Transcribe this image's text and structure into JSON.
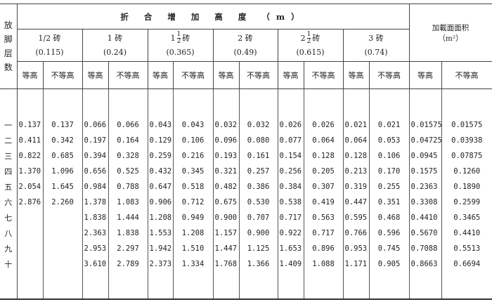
{
  "header": {
    "row_label": [
      "放",
      "脚",
      "层",
      "数"
    ],
    "group_title": "折 合 增 加 高 度 （m）",
    "area_title": "加載面面积",
    "area_unit": "（m²）",
    "sub_equal": "等高",
    "sub_unequal": "不等高",
    "groups": [
      {
        "whole": "1/2",
        "num": "",
        "den": "",
        "unit": "砖",
        "thickness": "(0.115)"
      },
      {
        "whole": "1",
        "num": "",
        "den": "",
        "unit": "砖",
        "thickness": "(0.24)"
      },
      {
        "whole": "1",
        "num": "1",
        "den": "2",
        "unit": "砖",
        "thickness": "(0.365)"
      },
      {
        "whole": "2",
        "num": "",
        "den": "",
        "unit": "砖",
        "thickness": "(0.49)"
      },
      {
        "whole": "2",
        "num": "1",
        "den": "2",
        "unit": "砖",
        "thickness": "(0.615)"
      },
      {
        "whole": "3",
        "num": "",
        "den": "",
        "unit": "砖",
        "thickness": "(0.74)"
      }
    ]
  },
  "rows": [
    {
      "level": "一",
      "values": [
        "0.137",
        "0.137",
        "0.066",
        "0.066",
        "0.043",
        "0.043",
        "0.032",
        "0.032",
        "0.026",
        "0.026",
        "0.021",
        "0.021",
        "0.01575",
        "0.01575"
      ]
    },
    {
      "level": "二",
      "values": [
        "0.411",
        "0.342",
        "0.197",
        "0.164",
        "0.129",
        "0.106",
        "0.096",
        "0.080",
        "0.077",
        "0.064",
        "0.064",
        "0.053",
        "0.04725",
        "0.03938"
      ]
    },
    {
      "level": "三",
      "values": [
        "0.822",
        "0.685",
        "0.394",
        "0.328",
        "0.259",
        "0.216",
        "0.193",
        "0.161",
        "0.154",
        "0.128",
        "0.128",
        "0.106",
        "0.0945",
        "0.07875"
      ]
    },
    {
      "level": "四",
      "values": [
        "1.370",
        "1.096",
        "0.656",
        "0.525",
        "0.432",
        "0.345",
        "0.321",
        "0.257",
        "0.256",
        "0.205",
        "0.213",
        "0.170",
        "0.1575",
        "0.1260"
      ]
    },
    {
      "level": "五",
      "values": [
        "2.054",
        "1.645",
        "0.984",
        "0.788",
        "0.647",
        "0.518",
        "0.482",
        "0.386",
        "0.384",
        "0.307",
        "0.319",
        "0.255",
        "0.2363",
        "0.1890"
      ]
    },
    {
      "level": "六",
      "values": [
        "2.876",
        "2.260",
        "1.378",
        "1.083",
        "0.906",
        "0.712",
        "0.675",
        "0.530",
        "0.538",
        "0.419",
        "0.447",
        "0.351",
        "0.3308",
        "0.2599"
      ]
    },
    {
      "level": "七",
      "values": [
        "",
        "",
        "1.838",
        "1.444",
        "1.208",
        "0.949",
        "0.900",
        "0.707",
        "0.717",
        "0.563",
        "0.595",
        "0.468",
        "0.4410",
        "0.3465"
      ]
    },
    {
      "level": "八",
      "values": [
        "",
        "",
        "2.363",
        "1.838",
        "1.553",
        "1.208",
        "1.157",
        "0.900",
        "0.922",
        "0.717",
        "0.766",
        "0.596",
        "0.5670",
        "0.4410"
      ]
    },
    {
      "level": "九",
      "values": [
        "",
        "",
        "2.953",
        "2.297",
        "1.942",
        "1.510",
        "1.447",
        "1.125",
        "1.653",
        "0.896",
        "0.953",
        "0.745",
        "0.7088",
        "0.5513"
      ]
    },
    {
      "level": "十",
      "values": [
        "",
        "",
        "3.610",
        "2.789",
        "2.373",
        "1.334",
        "1.768",
        "1.366",
        "1.409",
        "1.088",
        "1.171",
        "0.905",
        "0.8663",
        "0.6694"
      ]
    }
  ]
}
